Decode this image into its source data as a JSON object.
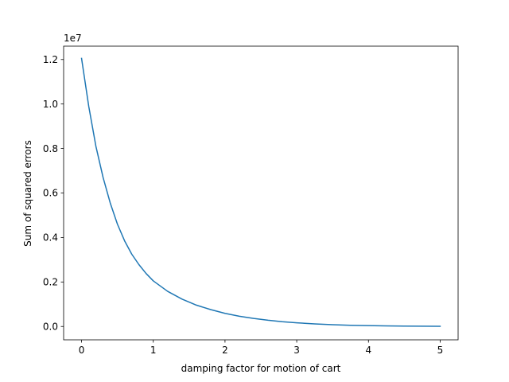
{
  "chart_data": {
    "type": "line",
    "xlabel": "damping factor for motion of cart",
    "ylabel": "Sum of squared errors",
    "y_offset_label": "1e7",
    "xlim": [
      -0.25,
      5.25
    ],
    "ylim": [
      -600000,
      12600000
    ],
    "x_ticks": [
      0,
      1,
      2,
      3,
      4,
      5
    ],
    "x_tick_labels": [
      "0",
      "1",
      "2",
      "3",
      "4",
      "5"
    ],
    "y_ticks": [
      0,
      2000000,
      4000000,
      6000000,
      8000000,
      10000000,
      12000000
    ],
    "y_tick_labels": [
      "0.0",
      "0.2",
      "0.4",
      "0.6",
      "0.8",
      "1.0",
      "1.2"
    ],
    "grid": false,
    "line_color": "#1f77b4",
    "series": [
      {
        "x": [
          0,
          0.1,
          0.2,
          0.3,
          0.4,
          0.5,
          0.6,
          0.7,
          0.8,
          0.9,
          1.0,
          1.2,
          1.4,
          1.6,
          1.8,
          2.0,
          2.2,
          2.4,
          2.6,
          2.8,
          3.0,
          3.25,
          3.5,
          3.75,
          4.0,
          4.25,
          4.5,
          4.75,
          5.0
        ],
        "values": [
          12050000,
          9900000,
          8100000,
          6700000,
          5550000,
          4600000,
          3850000,
          3250000,
          2780000,
          2380000,
          2050000,
          1580000,
          1230000,
          960000,
          760000,
          590000,
          460000,
          360000,
          280000,
          215000,
          165000,
          115000,
          80000,
          55000,
          38000,
          26000,
          18000,
          12000,
          8000
        ]
      }
    ]
  }
}
